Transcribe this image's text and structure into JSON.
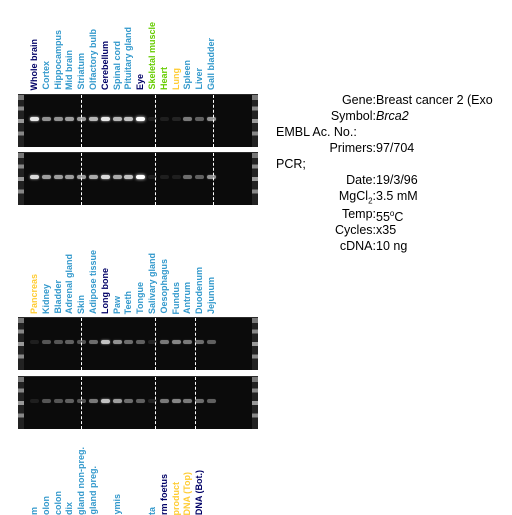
{
  "colors": {
    "navy": "#000066",
    "cyan": "#3399cc",
    "green": "#66cc00",
    "yellow": "#ffcc33",
    "gel_bg": "#0b0b0b",
    "band": "#ffffff"
  },
  "panel1": {
    "lanes": [
      {
        "label": "Whole brain",
        "color": "navy",
        "top": 0.9,
        "bottom": 0.85
      },
      {
        "label": "Cortex",
        "color": "cyan",
        "top": 0.55,
        "bottom": 0.6
      },
      {
        "label": "Hippocampus",
        "color": "cyan",
        "top": 0.55,
        "bottom": 0.6
      },
      {
        "label": "Mid brain",
        "color": "cyan",
        "top": 0.6,
        "bottom": 0.6
      },
      {
        "label": "Striatum",
        "color": "cyan",
        "top": 0.6,
        "bottom": 0.6
      },
      {
        "label": "Olfactory bulb",
        "color": "cyan",
        "top": 0.7,
        "bottom": 0.65
      },
      {
        "label": "Cerebellum",
        "color": "navy",
        "top": 0.9,
        "bottom": 0.85
      },
      {
        "label": "Spinal cord",
        "color": "cyan",
        "top": 0.7,
        "bottom": 0.65
      },
      {
        "label": "Pituitary gland",
        "color": "cyan",
        "top": 0.75,
        "bottom": 0.75
      },
      {
        "label": "Eye",
        "color": "navy",
        "top": 1.0,
        "bottom": 1.0
      },
      {
        "label": "Skeletal muscle",
        "color": "green",
        "top": 0.05,
        "bottom": 0.05
      },
      {
        "label": "Heart",
        "color": "green",
        "top": 0.05,
        "bottom": 0.05
      },
      {
        "label": "Lung",
        "color": "yellow",
        "top": 0.1,
        "bottom": 0.05
      },
      {
        "label": "Spleen",
        "color": "cyan",
        "top": 0.45,
        "bottom": 0.4
      },
      {
        "label": "Liver",
        "color": "cyan",
        "top": 0.35,
        "bottom": 0.35
      },
      {
        "label": "Gall bladder",
        "color": "cyan",
        "top": 0.55,
        "bottom": 0.55
      }
    ]
  },
  "panel2": {
    "lanes": [
      {
        "label": "Pancreas",
        "color": "yellow",
        "top": 0.05,
        "bottom": 0.05
      },
      {
        "label": "Kidney",
        "color": "cyan",
        "top": 0.3,
        "bottom": 0.3
      },
      {
        "label": "Bladder",
        "color": "cyan",
        "top": 0.3,
        "bottom": 0.3
      },
      {
        "label": "Adrenal gland",
        "color": "cyan",
        "top": 0.35,
        "bottom": 0.35
      },
      {
        "label": "Skin",
        "color": "cyan",
        "top": 0.3,
        "bottom": 0.3
      },
      {
        "label": "Adipose tissue",
        "color": "cyan",
        "top": 0.4,
        "bottom": 0.45
      },
      {
        "label": "Long bone",
        "color": "navy",
        "top": 0.75,
        "bottom": 0.75
      },
      {
        "label": "Paw",
        "color": "cyan",
        "top": 0.55,
        "bottom": 0.6
      },
      {
        "label": "Teeth",
        "color": "cyan",
        "top": 0.4,
        "bottom": 0.4
      },
      {
        "label": "Tongue",
        "color": "cyan",
        "top": 0.35,
        "bottom": 0.35
      },
      {
        "label": "Salivary gland",
        "color": "cyan",
        "top": 0.1,
        "bottom": 0.1
      },
      {
        "label": "Oesophagus",
        "color": "cyan",
        "top": 0.45,
        "bottom": 0.45
      },
      {
        "label": "Fundus",
        "color": "cyan",
        "top": 0.5,
        "bottom": 0.5
      },
      {
        "label": "Antrum",
        "color": "cyan",
        "top": 0.45,
        "bottom": 0.45
      },
      {
        "label": "Duodenum",
        "color": "cyan",
        "top": 0.4,
        "bottom": 0.4
      },
      {
        "label": "Jejunum",
        "color": "cyan",
        "top": 0.35,
        "bottom": 0.35
      }
    ]
  },
  "panel3": {
    "lanes": [
      {
        "label": "m",
        "color": "cyan"
      },
      {
        "label": "olon",
        "color": "cyan"
      },
      {
        "label": "colon",
        "color": "cyan"
      },
      {
        "label": "dix",
        "color": "cyan"
      },
      {
        "label": "gland non-preg.",
        "color": "cyan"
      },
      {
        "label": "gland preg.",
        "color": "cyan"
      },
      {
        "label": "",
        "color": "cyan"
      },
      {
        "label": "ymis",
        "color": "cyan"
      },
      {
        "label": "",
        "color": "cyan"
      },
      {
        "label": "",
        "color": "cyan"
      },
      {
        "label": "ta",
        "color": "cyan"
      },
      {
        "label": "rm foetus",
        "color": "navy"
      },
      {
        "label": "product",
        "color": "yellow"
      },
      {
        "label": "DNA (Top)",
        "color": "yellow"
      },
      {
        "label": "DNA (Bot.)",
        "color": "navy"
      }
    ]
  },
  "info": {
    "gene_label": "Gene:",
    "gene_value": "Breast cancer 2 (Exo",
    "symbol_label": "Symbol:",
    "symbol_value": "Brca2",
    "embl_label": "EMBL Ac. No.:",
    "primers_label": "Primers:",
    "primers_value": "97/704",
    "pcr_label": "PCR;",
    "date_label": "Date:",
    "date_value": "19/3/96",
    "mgcl_label_a": "MgCl",
    "mgcl_label_sub": "2",
    "mgcl_label_b": ":",
    "mgcl_value": "3.5 mM",
    "temp_label": "Temp:",
    "temp_value_a": "55",
    "temp_value_sup": "o",
    "temp_value_b": "C",
    "cycles_label": "Cycles:",
    "cycles_value": "x35",
    "cdna_label": "cDNA:",
    "cdna_value": "10 ng"
  }
}
